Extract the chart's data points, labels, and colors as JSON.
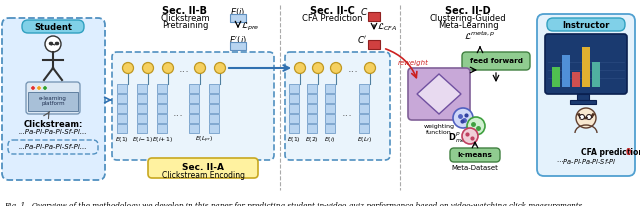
{
  "caption": "Fig. 1.  Overview of the methodology we develop in this paper for predicting student in-video quiz performance based on video-watching click measurements.",
  "bg_color": "#ffffff",
  "embed_color_face": "#b8d4f0",
  "embed_color_edge": "#6090c0",
  "node_face": "#f5d060",
  "node_edge": "#c09820",
  "dashed_box_face": "#eaf4fc",
  "dashed_box_edge": "#5090c0",
  "student_box_face": "#deeeff",
  "student_box_edge": "#5090c0",
  "instructor_box_face": "#e4f2fc",
  "instructor_box_edge": "#50a0d0",
  "cyan_label_face": "#80d0e8",
  "cyan_label_edge": "#30a0c0",
  "yellow_box_face": "#fff2a0",
  "yellow_box_border": "#c8a820",
  "green_box_face": "#90cc90",
  "green_box_edge": "#408040",
  "purple_box_face": "#c8a8d8",
  "purple_box_edge": "#806098",
  "red_box_face": "#d04040",
  "red_box_edge": "#902020",
  "arrow_blue": "#3070b0",
  "arrow_red": "#cc2020",
  "text_dark": "#111111",
  "sep_color": "#aaaaaa",
  "sec_IIA_label": "Sec. II-A",
  "sec_IIA_sub": "Clickstream Encoding",
  "sec_IIB_label": "Sec. II-B",
  "sec_IIB_sub1": "Clickstream",
  "sec_IIB_sub2": "Pretraining",
  "sec_IIC_label": "Sec. II-C",
  "sec_IIC_sub": "CFA Prediction",
  "sec_IID_label": "Sec. II-D",
  "sec_IID_sub1": "Clustering-Guided",
  "sec_IID_sub2": "Meta-Learning"
}
